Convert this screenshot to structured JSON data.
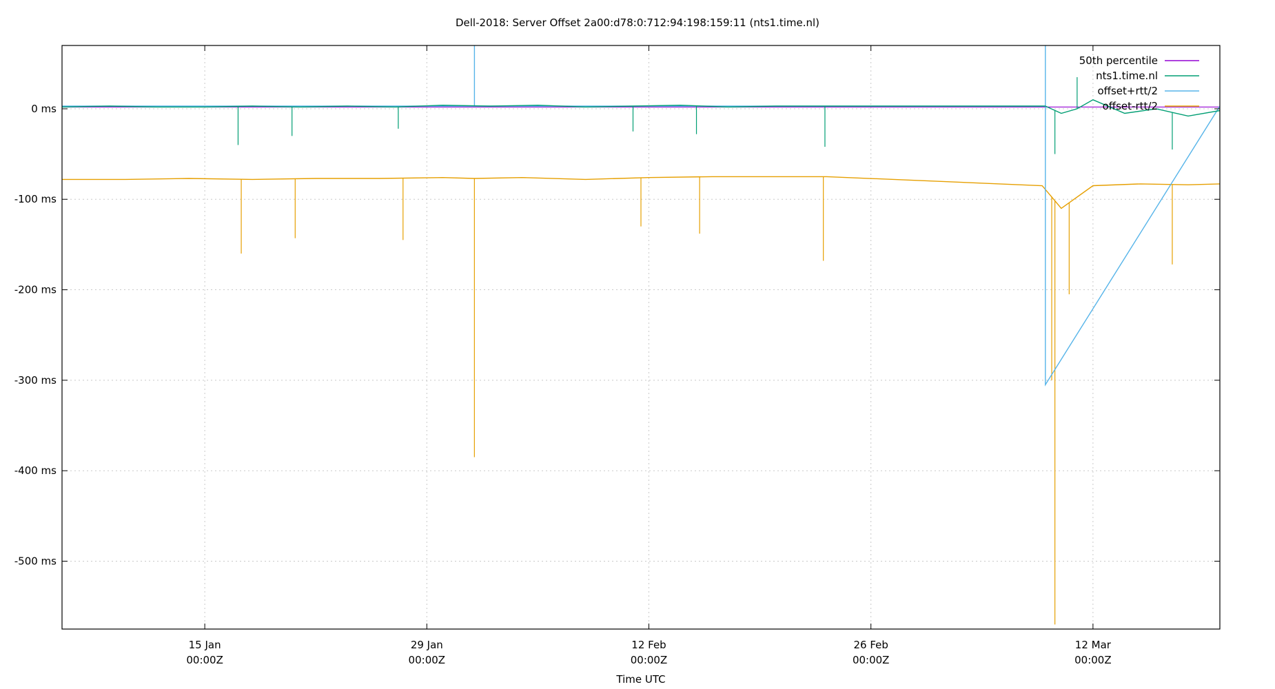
{
  "chart_data": {
    "type": "line",
    "title": "Dell-2018: Server Offset 2a00:d78:0:712:94:198:159:11 (nts1.time.nl)",
    "xlabel": "Time UTC",
    "ylabel": "",
    "xlim": [
      "2025-01-06",
      "2025-03-20"
    ],
    "ylim": [
      -575,
      70
    ],
    "y_ticks": [
      0,
      -100,
      -200,
      -300,
      -400,
      -500
    ],
    "y_tick_labels": [
      "0 ms",
      "-100 ms",
      "-200 ms",
      "-300 ms",
      "-400 ms",
      "-500 ms"
    ],
    "x_ticks": [
      "2025-01-15",
      "2025-01-29",
      "2025-02-12",
      "2025-02-26",
      "2025-03-12"
    ],
    "x_tick_labels": [
      {
        "date": "15 Jan",
        "time": "00:00Z"
      },
      {
        "date": "29 Jan",
        "time": "00:00Z"
      },
      {
        "date": "12 Feb",
        "time": "00:00Z"
      },
      {
        "date": "26 Feb",
        "time": "00:00Z"
      },
      {
        "date": "12 Mar",
        "time": "00:00Z"
      }
    ],
    "grid": true,
    "legend_position": "top-right",
    "series": [
      {
        "name": "50th percentile",
        "color": "#9400d3",
        "x": [
          "2025-01-06",
          "2025-03-20"
        ],
        "y": [
          2,
          2
        ]
      },
      {
        "name": "nts1.time.nl",
        "color": "#009e73",
        "x": [
          "2025-01-06",
          "2025-01-09",
          "2025-01-12",
          "2025-01-15",
          "2025-01-18",
          "2025-01-21",
          "2025-01-24",
          "2025-01-27",
          "2025-01-30",
          "2025-02-02",
          "2025-02-05",
          "2025-02-08",
          "2025-02-11",
          "2025-02-14",
          "2025-02-17",
          "2025-02-20",
          "2025-02-23",
          "2025-02-24",
          "2025-03-09",
          "2025-03-10",
          "2025-03-11",
          "2025-03-12",
          "2025-03-14",
          "2025-03-16",
          "2025-03-18",
          "2025-03-20"
        ],
        "y": [
          2,
          3,
          2,
          2,
          3,
          2,
          3,
          2,
          4,
          3,
          4,
          2,
          3,
          4,
          2,
          3,
          3,
          3,
          3,
          -5,
          0,
          10,
          -5,
          0,
          -8,
          -2
        ],
        "spikes": [
          {
            "x": "2025-01-17.1",
            "y": -40
          },
          {
            "x": "2025-01-20.5",
            "y": -30
          },
          {
            "x": "2025-01-27.2",
            "y": -22
          },
          {
            "x": "2025-02-11.0",
            "y": -25
          },
          {
            "x": "2025-02-15.0",
            "y": -28
          },
          {
            "x": "2025-02-23.1",
            "y": -42
          },
          {
            "x": "2025-03-09.6",
            "y": -50
          },
          {
            "x": "2025-03-11.0",
            "y": 35
          },
          {
            "x": "2025-03-17.0",
            "y": -45
          }
        ]
      },
      {
        "name": "offset+rtt/2",
        "color": "#56b4e9",
        "x": [
          "2025-01-06",
          "2025-02-01",
          "2025-02-01",
          "2025-02-01",
          "2025-03-09",
          "2025-03-09",
          "2025-03-09",
          "2025-03-20"
        ],
        "y": [
          3,
          3,
          70,
          3,
          3,
          70,
          -305,
          3
        ]
      },
      {
        "name": "offset-rtt/2",
        "color": "#e69f00",
        "x": [
          "2025-01-06",
          "2025-01-10",
          "2025-01-14",
          "2025-01-18",
          "2025-01-22",
          "2025-01-26",
          "2025-01-30",
          "2025-02-01",
          "2025-02-04",
          "2025-02-08",
          "2025-02-12",
          "2025-02-16",
          "2025-02-20",
          "2025-02-23.2",
          "2025-03-08.8",
          "2025-03-10",
          "2025-03-12",
          "2025-03-15",
          "2025-03-18",
          "2025-03-20"
        ],
        "y": [
          -78,
          -78,
          -77,
          -78,
          -77,
          -77,
          -76,
          -77,
          -76,
          -78,
          -76,
          -75,
          -75,
          -75,
          -85,
          -110,
          -85,
          -83,
          -84,
          -83
        ],
        "spikes": [
          {
            "x": "2025-01-17.3",
            "y": -160
          },
          {
            "x": "2025-01-20.7",
            "y": -143
          },
          {
            "x": "2025-01-27.5",
            "y": -145
          },
          {
            "x": "2025-02-01.0",
            "y": -385
          },
          {
            "x": "2025-02-11.5",
            "y": -130
          },
          {
            "x": "2025-02-15.2",
            "y": -138
          },
          {
            "x": "2025-02-23.0",
            "y": -168
          },
          {
            "x": "2025-03-09.4",
            "y": -300
          },
          {
            "x": "2025-03-09.6",
            "y": -570
          },
          {
            "x": "2025-03-10.5",
            "y": -205
          },
          {
            "x": "2025-03-17.0",
            "y": -172
          }
        ]
      }
    ]
  }
}
